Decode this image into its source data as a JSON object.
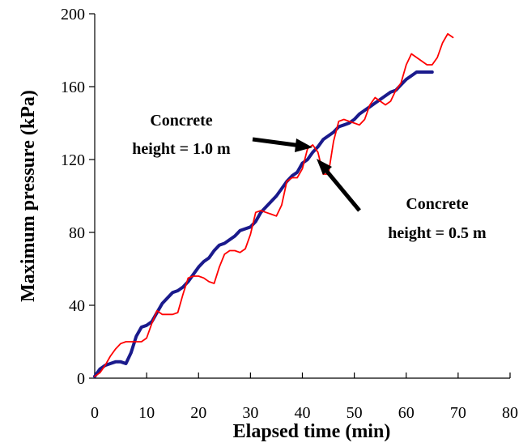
{
  "chart_data": {
    "type": "line",
    "title": "",
    "xlabel": "Elapsed time (min)",
    "ylabel": "Maximum pressure (kPa)",
    "xlim": [
      0,
      80
    ],
    "ylim": [
      0,
      200
    ],
    "xticks": [
      "0",
      "10",
      "20",
      "30",
      "40",
      "50",
      "60",
      "70",
      "80"
    ],
    "yticks": [
      "0",
      "40",
      "80",
      "120",
      "160",
      "200"
    ],
    "grid": false,
    "legend": "none",
    "series": [
      {
        "color": "#1a1a8c",
        "x": [
          0,
          0.5,
          1,
          2,
          3,
          4,
          5,
          6,
          7,
          8,
          9,
          10,
          11,
          12,
          13,
          14,
          15,
          16,
          17,
          18,
          19,
          20,
          21,
          22,
          23,
          24,
          25,
          26,
          27,
          28,
          29,
          30,
          31,
          32,
          33,
          34,
          35,
          36,
          37,
          38,
          39,
          40,
          41,
          42,
          43,
          44,
          45,
          46,
          47,
          48,
          49,
          50,
          51,
          52,
          53,
          54,
          55,
          56,
          57,
          58,
          59,
          60,
          61,
          62,
          63,
          64,
          65
        ],
        "y": [
          1,
          3,
          5,
          7,
          8,
          9,
          9,
          8,
          14,
          23,
          28,
          29,
          31,
          36,
          41,
          44,
          47,
          48,
          50,
          53,
          57,
          61,
          64,
          66,
          70,
          73,
          74,
          76,
          78,
          81,
          82,
          83,
          86,
          91,
          94,
          97,
          100,
          104,
          108,
          111,
          113,
          118,
          120,
          124,
          127,
          131,
          133,
          135,
          138,
          139,
          140,
          142,
          145,
          147,
          149,
          151,
          153,
          155,
          157,
          158,
          161,
          164,
          166,
          168,
          168,
          168,
          168
        ]
      },
      {
        "color": "#ff0000",
        "x": [
          0,
          1,
          2,
          3,
          4,
          5,
          6,
          7,
          8,
          9,
          10,
          11,
          12,
          13,
          14,
          15,
          16,
          17,
          18,
          19,
          20,
          21,
          22,
          23,
          24,
          25,
          26,
          27,
          28,
          29,
          30,
          31,
          32,
          33,
          34,
          35,
          36,
          37,
          38,
          39,
          40,
          41,
          42,
          43,
          44,
          45,
          46,
          47,
          48,
          49,
          50,
          51,
          52,
          53,
          54,
          55,
          56,
          57,
          58,
          59,
          60,
          61,
          62,
          63,
          64,
          65,
          66,
          67,
          68,
          69
        ],
        "y": [
          1,
          3,
          7,
          12,
          16,
          19,
          20,
          20,
          20,
          20,
          22,
          30,
          37,
          35,
          35,
          35,
          36,
          46,
          55,
          56,
          56,
          55,
          53,
          52,
          61,
          68,
          70,
          70,
          69,
          71,
          79,
          91,
          92,
          91,
          90,
          89,
          95,
          108,
          110,
          110,
          115,
          126,
          128,
          124,
          112,
          112,
          130,
          141,
          142,
          141,
          140,
          139,
          142,
          150,
          154,
          152,
          150,
          152,
          158,
          162,
          172,
          178,
          176,
          174,
          172,
          172,
          176,
          184,
          189,
          187
        ]
      }
    ],
    "annotations": [
      {
        "line1": "Concrete",
        "line2": "height = 1.0 m"
      },
      {
        "line1": "Concrete",
        "line2": "height = 0.5 m"
      }
    ]
  }
}
